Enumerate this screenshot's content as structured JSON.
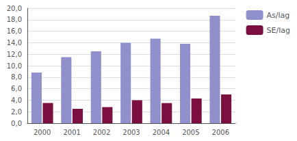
{
  "chart_data": {
    "type": "bar",
    "categories": [
      "2000",
      "2001",
      "2002",
      "2003",
      "2004",
      "2005",
      "2006"
    ],
    "series": [
      {
        "name": "As/lag",
        "color": "#9090cc",
        "values": [
          8.8,
          11.5,
          12.5,
          14.0,
          14.7,
          13.8,
          18.7
        ]
      },
      {
        "name": "SE/lag",
        "color": "#7b1040",
        "values": [
          3.5,
          2.5,
          2.8,
          4.0,
          3.5,
          4.3,
          5.0
        ]
      }
    ],
    "ylim": [
      0,
      20
    ],
    "yticks": [
      {
        "value": 0.0,
        "label": "0,0"
      },
      {
        "value": 2.0,
        "label": "2,0"
      },
      {
        "value": 4.0,
        "label": "4,0"
      },
      {
        "value": 6.0,
        "label": "6,0"
      },
      {
        "value": 8.0,
        "label": "8,0"
      },
      {
        "value": 10.0,
        "label": "10,0"
      },
      {
        "value": 12.0,
        "label": "12,0"
      },
      {
        "value": 14.0,
        "label": "14,0"
      },
      {
        "value": 16.0,
        "label": "16,0"
      },
      {
        "value": 18.0,
        "label": "18,0"
      },
      {
        "value": 20.0,
        "label": "20,0"
      }
    ],
    "grid": true,
    "legend": "right"
  }
}
